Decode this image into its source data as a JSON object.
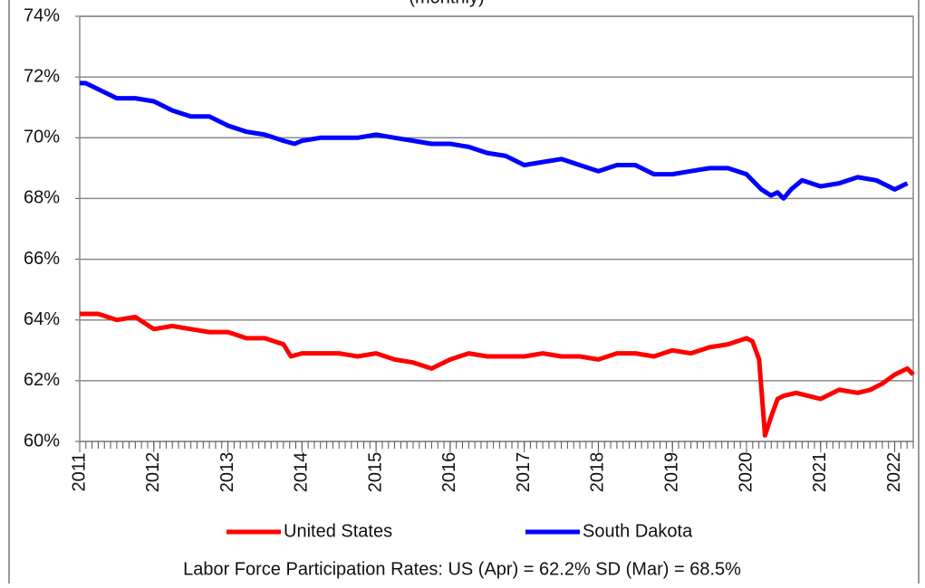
{
  "chart_data": {
    "type": "line",
    "title": "(monthly)",
    "note": "Labor Force Participation Rates: US (Apr) = 62.2%  SD (Mar) = 68.5%",
    "xlim": [
      2011,
      2022.25
    ],
    "xticks": [
      2011,
      2012,
      2013,
      2014,
      2015,
      2016,
      2017,
      2018,
      2019,
      2020,
      2021,
      2022
    ],
    "ylim": [
      60,
      74
    ],
    "yticks": [
      {
        "value": 60,
        "label": "60%"
      },
      {
        "value": 62,
        "label": "62%"
      },
      {
        "value": 64,
        "label": "64%"
      },
      {
        "value": 66,
        "label": "66%"
      },
      {
        "value": 68,
        "label": "68%"
      },
      {
        "value": 70,
        "label": "70%"
      },
      {
        "value": 72,
        "label": "72%"
      },
      {
        "value": 74,
        "label": "74%"
      }
    ],
    "grid": true,
    "legend": "bottom",
    "series": [
      {
        "name": "United States",
        "color": "#ff0000",
        "x": [
          2011.0,
          2011.25,
          2011.5,
          2011.75,
          2012.0,
          2012.25,
          2012.5,
          2012.75,
          2013.0,
          2013.25,
          2013.5,
          2013.75,
          2013.85,
          2014.0,
          2014.25,
          2014.5,
          2014.75,
          2015.0,
          2015.25,
          2015.5,
          2015.75,
          2016.0,
          2016.25,
          2016.5,
          2016.75,
          2017.0,
          2017.25,
          2017.5,
          2017.75,
          2018.0,
          2018.25,
          2018.5,
          2018.75,
          2019.0,
          2019.25,
          2019.5,
          2019.75,
          2020.0,
          2020.08,
          2020.17,
          2020.25,
          2020.33,
          2020.42,
          2020.5,
          2020.67,
          2020.83,
          2021.0,
          2021.25,
          2021.5,
          2021.67,
          2021.83,
          2022.0,
          2022.17,
          2022.25
        ],
        "values": [
          64.2,
          64.2,
          64.0,
          64.1,
          63.7,
          63.8,
          63.7,
          63.6,
          63.6,
          63.4,
          63.4,
          63.2,
          62.8,
          62.9,
          62.9,
          62.9,
          62.8,
          62.9,
          62.7,
          62.6,
          62.4,
          62.7,
          62.9,
          62.8,
          62.8,
          62.8,
          62.9,
          62.8,
          62.8,
          62.7,
          62.9,
          62.9,
          62.8,
          63.0,
          62.9,
          63.1,
          63.2,
          63.4,
          63.3,
          62.7,
          60.2,
          60.8,
          61.4,
          61.5,
          61.6,
          61.5,
          61.4,
          61.7,
          61.6,
          61.7,
          61.9,
          62.2,
          62.4,
          62.2
        ]
      },
      {
        "name": "South Dakota",
        "color": "#0000ff",
        "x": [
          2011.0,
          2011.08,
          2011.25,
          2011.5,
          2011.75,
          2012.0,
          2012.25,
          2012.5,
          2012.75,
          2013.0,
          2013.25,
          2013.5,
          2013.75,
          2013.9,
          2014.0,
          2014.25,
          2014.5,
          2014.75,
          2015.0,
          2015.25,
          2015.5,
          2015.75,
          2016.0,
          2016.25,
          2016.5,
          2016.75,
          2017.0,
          2017.25,
          2017.5,
          2017.75,
          2018.0,
          2018.25,
          2018.5,
          2018.75,
          2019.0,
          2019.25,
          2019.5,
          2019.75,
          2020.0,
          2020.2,
          2020.33,
          2020.42,
          2020.5,
          2020.6,
          2020.75,
          2021.0,
          2021.25,
          2021.5,
          2021.75,
          2022.0,
          2022.17
        ],
        "values": [
          71.8,
          71.8,
          71.6,
          71.3,
          71.3,
          71.2,
          70.9,
          70.7,
          70.7,
          70.4,
          70.2,
          70.1,
          69.9,
          69.8,
          69.9,
          70.0,
          70.0,
          70.0,
          70.1,
          70.0,
          69.9,
          69.8,
          69.8,
          69.7,
          69.5,
          69.4,
          69.1,
          69.2,
          69.3,
          69.1,
          68.9,
          69.1,
          69.1,
          68.8,
          68.8,
          68.9,
          69.0,
          69.0,
          68.8,
          68.3,
          68.1,
          68.2,
          68.0,
          68.3,
          68.6,
          68.4,
          68.5,
          68.7,
          68.6,
          68.3,
          68.5
        ]
      }
    ]
  }
}
